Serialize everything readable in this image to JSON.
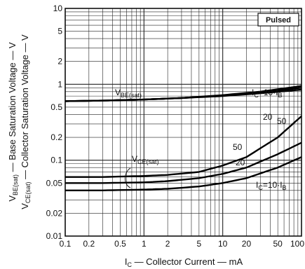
{
  "chart_data": {
    "type": "line",
    "xscale": "log",
    "yscale": "log",
    "xlim": [
      0.1,
      100
    ],
    "ylim": [
      0.01,
      10
    ],
    "grid": true,
    "x_ticks": [
      "0.1",
      "0.2",
      "0.5",
      "1",
      "2",
      "5",
      "10",
      "20",
      "50",
      "100"
    ],
    "x_tick_values": [
      0.1,
      0.2,
      0.5,
      1,
      2,
      5,
      10,
      20,
      50,
      100
    ],
    "y_ticks": [
      "0.01",
      "0.02",
      "0.05",
      "0.1",
      "0.2",
      "0.5",
      "1",
      "2",
      "5",
      "10"
    ],
    "y_tick_values": [
      0.01,
      0.02,
      0.05,
      0.1,
      0.2,
      0.5,
      1,
      2,
      5,
      10
    ],
    "xlabel": {
      "pre": "I",
      "sub": "C",
      "post": " — Collector  Current — mA"
    },
    "ylabel_line1": {
      "pre": "V",
      "sub": "BE(sat)",
      "post": " — Base Saturation  Voltage — V"
    },
    "ylabel_line2": {
      "pre": "V",
      "sub": "CE(sat)",
      "post": " — Collector  Saturation  Voltage — V"
    },
    "badge": "Pulsed",
    "series": [
      {
        "group": "VBE(sat)",
        "x": [
          0.1,
          0.3,
          1,
          3,
          10,
          30,
          100
        ],
        "y": [
          0.6,
          0.61,
          0.63,
          0.66,
          0.7,
          0.76,
          0.85
        ]
      },
      {
        "group": "VBE(sat)",
        "x": [
          0.1,
          0.3,
          1,
          3,
          10,
          30,
          100
        ],
        "y": [
          0.6,
          0.61,
          0.63,
          0.66,
          0.71,
          0.78,
          0.9
        ]
      },
      {
        "group": "VBE(sat)",
        "x": [
          0.1,
          0.3,
          1,
          3,
          10,
          30,
          100
        ],
        "y": [
          0.6,
          0.61,
          0.63,
          0.66,
          0.72,
          0.8,
          0.95
        ]
      },
      {
        "group": "VCE(sat)",
        "x": [
          0.1,
          0.3,
          1,
          2,
          5,
          10,
          20,
          50,
          100
        ],
        "y": [
          0.04,
          0.04,
          0.041,
          0.042,
          0.045,
          0.05,
          0.058,
          0.08,
          0.11
        ]
      },
      {
        "group": "VCE(sat)",
        "x": [
          0.1,
          0.3,
          1,
          2,
          5,
          10,
          20,
          50,
          100
        ],
        "y": [
          0.05,
          0.05,
          0.051,
          0.053,
          0.058,
          0.066,
          0.08,
          0.12,
          0.17
        ]
      },
      {
        "group": "VCE(sat)",
        "x": [
          0.1,
          0.3,
          1,
          2,
          5,
          10,
          20,
          50,
          100
        ],
        "y": [
          0.06,
          0.06,
          0.062,
          0.064,
          0.07,
          0.085,
          0.11,
          0.2,
          0.38
        ]
      }
    ],
    "annotations": {
      "vbe": {
        "pre": "V",
        "sub": "BE(sat)"
      },
      "vce": {
        "pre": "V",
        "sub": "CE(sat)"
      },
      "ic_upper": {
        "pre": "I",
        "sub": "C",
        "mid": "=10·I",
        "sub2": "B"
      },
      "ic_lower": {
        "pre": "I",
        "sub": "C",
        "mid": "=10·I",
        "sub2": "B"
      },
      "upper_20": "20",
      "upper_50": "50",
      "lower_50": "50",
      "lower_20": "20"
    }
  }
}
